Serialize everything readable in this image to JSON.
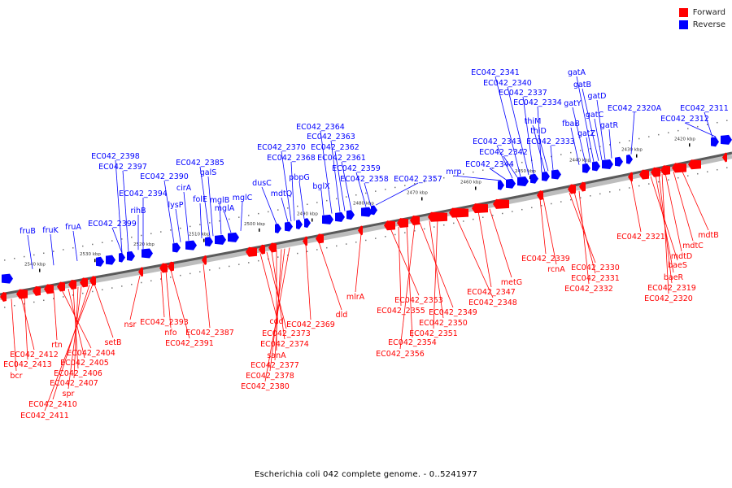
{
  "legend": {
    "forward_label": "Forward",
    "reverse_label": "Reverse",
    "forward_color": "#ff0000",
    "reverse_color": "#0000ff"
  },
  "caption": "Escherichia coli 042 complete genome. - 0..5241977",
  "axis_ticks": [
    "2540 kbp",
    "2530 kbp",
    "2520 kbp",
    "2510 kbp",
    "2500 kbp",
    "2490 kbp",
    "2480 kbp",
    "2470 kbp",
    "2460 kbp",
    "2450 kbp",
    "2440 kbp",
    "2430 kbp",
    "2420 kbp"
  ],
  "reverse_labels": [
    "fruB",
    "fruK",
    "fruA",
    "EC042_2399",
    "EC042_2398",
    "EC042_2397",
    "rihB",
    "EC042_2394",
    "EC042_2390",
    "lysP",
    "cirA",
    "folE",
    "EC042_2385",
    "galS",
    "mglB",
    "mglA",
    "mglC",
    "dusC",
    "mdtQ",
    "EC042_2370",
    "EC042_2368",
    "pbpG",
    "bglX",
    "EC042_2364",
    "EC042_2363",
    "EC042_2362",
    "EC042_2361",
    "EC042_2359",
    "EC042_2358",
    "EC042_2357",
    "mrp",
    "EC042_2344",
    "EC042_2343",
    "EC042_2342",
    "EC042_2341",
    "EC042_2340",
    "EC042_2337",
    "EC042_2334",
    "thiM",
    "thiD",
    "EC042_2333",
    "fbaB",
    "gatY",
    "gatZ",
    "gatA",
    "gatB",
    "gatD",
    "gatC",
    "gatR",
    "EC042_2320A",
    "EC042_2311",
    "EC042_2312"
  ],
  "forward_labels": [
    "bcr",
    "EC042_2412",
    "EC042_2413",
    "rtn",
    "EC042_2404",
    "EC042_2405",
    "EC042_2406",
    "EC042_2407",
    "spr",
    "EC042_2410",
    "EC042_2411",
    "setB",
    "nsr",
    "EC042_2393",
    "nfo",
    "EC042_2391",
    "EC042_2387",
    "cdd",
    "EC042_2373",
    "EC042_2374",
    "sanA",
    "EC042_2377",
    "EC042_2378",
    "EC042_2380",
    "EC042_2369",
    "dld",
    "mlrA",
    "EC042_2353",
    "EC042_2355",
    "EC042_2354",
    "EC042_2356",
    "EC042_2349",
    "EC042_2350",
    "EC042_2351",
    "EC042_2348",
    "EC042_2347",
    "metG",
    "EC042_2339",
    "rcnA",
    "EC042_2330",
    "EC042_2331",
    "EC042_2332",
    "EC042_2321",
    "baeS",
    "baeR",
    "EC042_2319",
    "EC042_2320",
    "mdtD",
    "mdtC",
    "mdtB"
  ]
}
